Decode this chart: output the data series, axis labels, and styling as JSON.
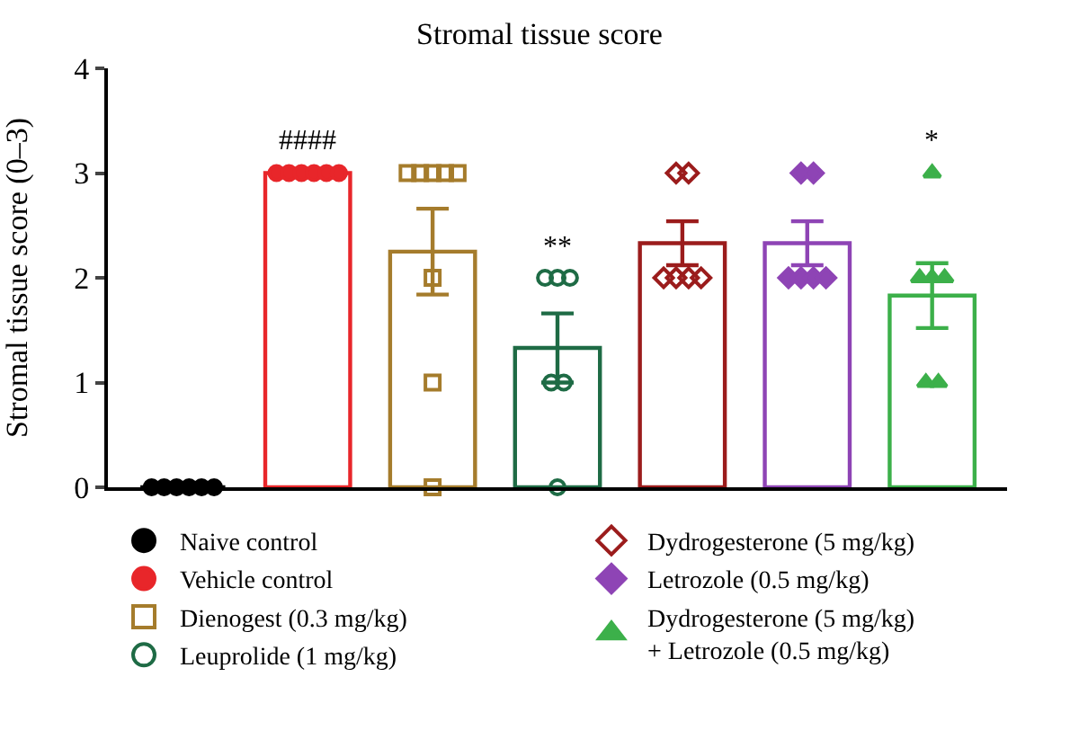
{
  "chart_data": {
    "type": "bar",
    "title": "Stromal tissue score",
    "ylabel": "Stromal tissue score (0–3)",
    "categories": [
      null,
      null,
      null,
      null,
      null,
      null,
      null
    ],
    "ylim": [
      0,
      4
    ],
    "yticks": [
      0,
      1,
      2,
      3,
      4
    ],
    "grid": false,
    "legend": "bottom",
    "tick_labels": "y",
    "series": [
      {
        "colors": [
          "#000000",
          "#e8262a",
          "#a57c2c",
          "#1e6b45",
          "#9b1c1c",
          "#8e44b5",
          "#3cb04a"
        ],
        "values": [
          0,
          3,
          2.25,
          1.33,
          2.33,
          2.33,
          1.83
        ],
        "errors": [
          0,
          0,
          0.41,
          0.33,
          0.21,
          0.21,
          0.31
        ]
      },
      {
        "type": "scatter",
        "name": "Naive control",
        "color": "#000000",
        "marker": "circle",
        "values": [
          0,
          null,
          null,
          null,
          null,
          null,
          null
        ]
      },
      {
        "type": "scatter",
        "color": "#000000",
        "marker": "circle",
        "values": [
          0,
          null,
          null,
          null,
          null,
          null,
          null
        ]
      },
      {
        "type": "scatter",
        "color": "#000000",
        "marker": "circle",
        "values": [
          0,
          null,
          null,
          null,
          null,
          null,
          null
        ]
      },
      {
        "type": "scatter",
        "color": "#000000",
        "marker": "circle",
        "values": [
          0,
          null,
          null,
          null,
          null,
          null,
          null
        ]
      },
      {
        "type": "scatter",
        "color": "#000000",
        "marker": "circle",
        "values": [
          0,
          null,
          null,
          null,
          null,
          null,
          null
        ]
      },
      {
        "type": "scatter",
        "color": "#000000",
        "marker": "circle",
        "values": [
          0,
          null,
          null,
          null,
          null,
          null,
          null
        ]
      },
      {
        "type": "scatter",
        "name": "Vehicle control",
        "color": "#e8262a",
        "marker": "circle",
        "values": [
          null,
          3,
          null,
          null,
          null,
          null,
          null
        ],
        "value_labels": [
          null,
          "####",
          null,
          null,
          null,
          null,
          null
        ]
      },
      {
        "type": "scatter",
        "color": "#e8262a",
        "marker": "circle",
        "values": [
          null,
          3,
          null,
          null,
          null,
          null,
          null
        ]
      },
      {
        "type": "scatter",
        "color": "#e8262a",
        "marker": "circle",
        "values": [
          null,
          3,
          null,
          null,
          null,
          null,
          null
        ]
      },
      {
        "type": "scatter",
        "color": "#e8262a",
        "marker": "circle",
        "values": [
          null,
          3,
          null,
          null,
          null,
          null,
          null
        ]
      },
      {
        "type": "scatter",
        "color": "#e8262a",
        "marker": "circle",
        "values": [
          null,
          3,
          null,
          null,
          null,
          null,
          null
        ]
      },
      {
        "type": "scatter",
        "color": "#e8262a",
        "marker": "circle",
        "values": [
          null,
          3,
          null,
          null,
          null,
          null,
          null
        ]
      },
      {
        "type": "scatter",
        "name": "Dienogest (0.3 mg/kg)",
        "color": "#a57c2c",
        "marker": "square-open",
        "values": [
          null,
          null,
          3,
          null,
          null,
          null,
          null
        ]
      },
      {
        "type": "scatter",
        "color": "#a57c2c",
        "marker": "square-open",
        "values": [
          null,
          null,
          3,
          null,
          null,
          null,
          null
        ]
      },
      {
        "type": "scatter",
        "color": "#a57c2c",
        "marker": "square-open",
        "values": [
          null,
          null,
          3,
          null,
          null,
          null,
          null
        ]
      },
      {
        "type": "scatter",
        "color": "#a57c2c",
        "marker": "square-open",
        "values": [
          null,
          null,
          3,
          null,
          null,
          null,
          null
        ]
      },
      {
        "type": "scatter",
        "color": "#a57c2c",
        "marker": "square-open",
        "values": [
          null,
          null,
          3,
          null,
          null,
          null,
          null
        ]
      },
      {
        "type": "scatter",
        "color": "#a57c2c",
        "marker": "square-open",
        "values": [
          null,
          null,
          2,
          null,
          null,
          null,
          null
        ]
      },
      {
        "type": "scatter",
        "color": "#a57c2c",
        "marker": "square-open",
        "values": [
          null,
          null,
          1,
          null,
          null,
          null,
          null
        ]
      },
      {
        "type": "scatter",
        "color": "#a57c2c",
        "marker": "square-open",
        "values": [
          null,
          null,
          0,
          null,
          null,
          null,
          null
        ]
      },
      {
        "type": "scatter",
        "name": "Leuprolide (1 mg/kg)",
        "color": "#1e6b45",
        "marker": "circle-open",
        "values": [
          null,
          null,
          null,
          2,
          null,
          null,
          null
        ],
        "value_labels": [
          null,
          null,
          null,
          "**",
          null,
          null,
          null
        ]
      },
      {
        "type": "scatter",
        "color": "#1e6b45",
        "marker": "circle-open",
        "values": [
          null,
          null,
          null,
          2,
          null,
          null,
          null
        ]
      },
      {
        "type": "scatter",
        "color": "#1e6b45",
        "marker": "circle-open",
        "values": [
          null,
          null,
          null,
          2,
          null,
          null,
          null
        ]
      },
      {
        "type": "scatter",
        "color": "#1e6b45",
        "marker": "circle-open",
        "values": [
          null,
          null,
          null,
          1,
          null,
          null,
          null
        ]
      },
      {
        "type": "scatter",
        "color": "#1e6b45",
        "marker": "circle-open",
        "values": [
          null,
          null,
          null,
          1,
          null,
          null,
          null
        ]
      },
      {
        "type": "scatter",
        "color": "#1e6b45",
        "marker": "circle-open",
        "values": [
          null,
          null,
          null,
          0,
          null,
          null,
          null
        ]
      },
      {
        "type": "scatter",
        "name": "Dydrogesterone (5 mg/kg)",
        "color": "#9b1c1c",
        "marker": "diamond-open",
        "values": [
          null,
          null,
          null,
          null,
          3,
          null,
          null
        ]
      },
      {
        "type": "scatter",
        "color": "#9b1c1c",
        "marker": "diamond-open",
        "values": [
          null,
          null,
          null,
          null,
          3,
          null,
          null
        ]
      },
      {
        "type": "scatter",
        "color": "#9b1c1c",
        "marker": "diamond-open",
        "values": [
          null,
          null,
          null,
          null,
          2,
          null,
          null
        ]
      },
      {
        "type": "scatter",
        "color": "#9b1c1c",
        "marker": "diamond-open",
        "values": [
          null,
          null,
          null,
          null,
          2,
          null,
          null
        ]
      },
      {
        "type": "scatter",
        "color": "#9b1c1c",
        "marker": "diamond-open",
        "values": [
          null,
          null,
          null,
          null,
          2,
          null,
          null
        ]
      },
      {
        "type": "scatter",
        "color": "#9b1c1c",
        "marker": "diamond-open",
        "values": [
          null,
          null,
          null,
          null,
          2,
          null,
          null
        ]
      },
      {
        "type": "scatter",
        "name": "Letrozole (0.5 mg/kg)",
        "color": "#8e44b5",
        "marker": "diamond",
        "values": [
          null,
          null,
          null,
          null,
          null,
          3,
          null
        ]
      },
      {
        "type": "scatter",
        "color": "#8e44b5",
        "marker": "diamond",
        "values": [
          null,
          null,
          null,
          null,
          null,
          3,
          null
        ]
      },
      {
        "type": "scatter",
        "color": "#8e44b5",
        "marker": "diamond",
        "values": [
          null,
          null,
          null,
          null,
          null,
          2,
          null
        ]
      },
      {
        "type": "scatter",
        "color": "#8e44b5",
        "marker": "diamond",
        "values": [
          null,
          null,
          null,
          null,
          null,
          2,
          null
        ]
      },
      {
        "type": "scatter",
        "color": "#8e44b5",
        "marker": "diamond",
        "values": [
          null,
          null,
          null,
          null,
          null,
          2,
          null
        ]
      },
      {
        "type": "scatter",
        "color": "#8e44b5",
        "marker": "diamond",
        "values": [
          null,
          null,
          null,
          null,
          null,
          2,
          null
        ]
      },
      {
        "type": "scatter",
        "name": "Dydrogesterone (5 mg/kg) + Letrozole (0.5 mg/kg)",
        "color": "#3cb04a",
        "marker": "triangle-up",
        "values": [
          null,
          null,
          null,
          null,
          null,
          null,
          3
        ],
        "value_labels": [
          null,
          null,
          null,
          null,
          null,
          null,
          "*"
        ]
      },
      {
        "type": "scatter",
        "color": "#3cb04a",
        "marker": "triangle-up",
        "values": [
          null,
          null,
          null,
          null,
          null,
          null,
          2
        ]
      },
      {
        "type": "scatter",
        "color": "#3cb04a",
        "marker": "triangle-up",
        "values": [
          null,
          null,
          null,
          null,
          null,
          null,
          2
        ]
      },
      {
        "type": "scatter",
        "color": "#3cb04a",
        "marker": "triangle-up",
        "values": [
          null,
          null,
          null,
          null,
          null,
          null,
          2
        ]
      },
      {
        "type": "scatter",
        "color": "#3cb04a",
        "marker": "triangle-up",
        "values": [
          null,
          null,
          null,
          null,
          null,
          null,
          1
        ]
      },
      {
        "type": "scatter",
        "color": "#3cb04a",
        "marker": "triangle-up",
        "values": [
          null,
          null,
          null,
          null,
          null,
          null,
          1
        ]
      }
    ]
  }
}
